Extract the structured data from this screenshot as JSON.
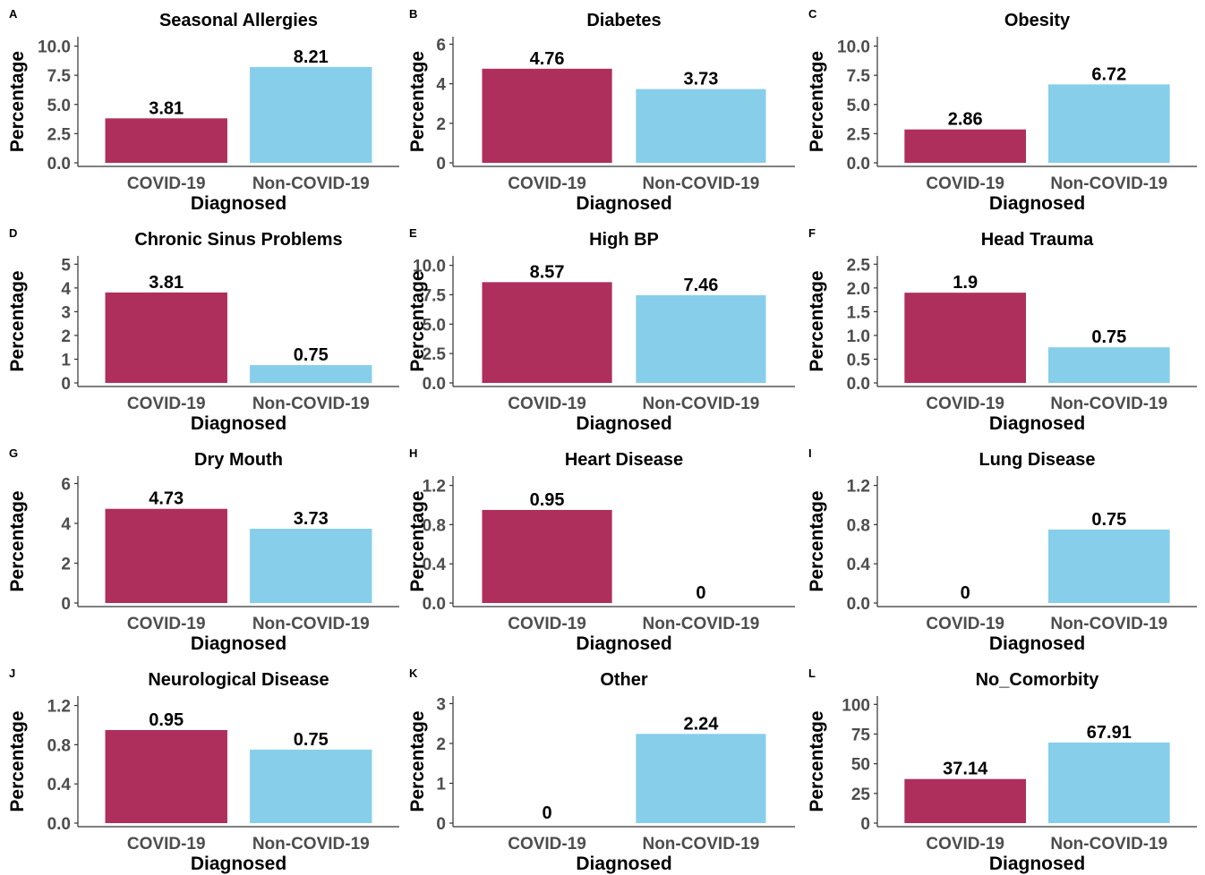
{
  "colors": {
    "covid": "#AE2F5C",
    "noncovid": "#87CEEB"
  },
  "chart_data": [
    {
      "letter": "A",
      "type": "bar",
      "title": "Seasonal Allergies",
      "xlabel": "Diagnosed",
      "ylabel": "Percentage",
      "categories": [
        "COVID-19",
        "Non-COVID-19"
      ],
      "values": [
        3.81,
        8.21
      ],
      "value_labels": [
        "3.81",
        "8.21"
      ],
      "ylim": [
        0,
        10.5
      ],
      "yticks": [
        "0.0",
        "2.5",
        "5.0",
        "7.5",
        "10.0"
      ],
      "ytick_values": [
        0,
        2.5,
        5,
        7.5,
        10
      ]
    },
    {
      "letter": "B",
      "type": "bar",
      "title": "Diabetes",
      "xlabel": "Diagnosed",
      "ylabel": "Percentage",
      "categories": [
        "COVID-19",
        "Non-COVID-19"
      ],
      "values": [
        4.76,
        3.73
      ],
      "value_labels": [
        "4.76",
        "3.73"
      ],
      "ylim": [
        0,
        6.2
      ],
      "yticks": [
        "0",
        "2",
        "4",
        "6"
      ],
      "ytick_values": [
        0,
        2,
        4,
        6
      ]
    },
    {
      "letter": "C",
      "type": "bar",
      "title": "Obesity",
      "xlabel": "Diagnosed",
      "ylabel": "Percentage",
      "categories": [
        "COVID-19",
        "Non-COVID-19"
      ],
      "values": [
        2.86,
        6.72
      ],
      "value_labels": [
        "2.86",
        "6.72"
      ],
      "ylim": [
        0,
        10.5
      ],
      "yticks": [
        "0.0",
        "2.5",
        "5.0",
        "7.5",
        "10.0"
      ],
      "ytick_values": [
        0,
        2.5,
        5,
        7.5,
        10
      ]
    },
    {
      "letter": "D",
      "type": "bar",
      "title": "Chronic Sinus Problems",
      "xlabel": "Diagnosed",
      "ylabel": "Percentage",
      "categories": [
        "COVID-19",
        "Non-COVID-19"
      ],
      "values": [
        3.81,
        0.75
      ],
      "value_labels": [
        "3.81",
        "0.75"
      ],
      "ylim": [
        0,
        5.2
      ],
      "yticks": [
        "0",
        "1",
        "2",
        "3",
        "4",
        "5"
      ],
      "ytick_values": [
        0,
        1,
        2,
        3,
        4,
        5
      ]
    },
    {
      "letter": "E",
      "type": "bar",
      "title": "High BP",
      "xlabel": "Diagnosed",
      "ylabel": "Percentage",
      "categories": [
        "COVID-19",
        "Non-COVID-19"
      ],
      "values": [
        8.57,
        7.46
      ],
      "value_labels": [
        "8.57",
        "7.46"
      ],
      "ylim": [
        0,
        10.5
      ],
      "yticks": [
        "0.0",
        "2.5",
        "5.0",
        "7.5",
        "10.0"
      ],
      "ytick_values": [
        0,
        2.5,
        5,
        7.5,
        10
      ]
    },
    {
      "letter": "F",
      "type": "bar",
      "title": "Head Trauma",
      "xlabel": "Diagnosed",
      "ylabel": "Percentage",
      "categories": [
        "COVID-19",
        "Non-COVID-19"
      ],
      "values": [
        1.9,
        0.75
      ],
      "value_labels": [
        "1.9",
        "0.75"
      ],
      "ylim": [
        0,
        2.6
      ],
      "yticks": [
        "0.0",
        "0.5",
        "1.0",
        "1.5",
        "2.0",
        "2.5"
      ],
      "ytick_values": [
        0,
        0.5,
        1,
        1.5,
        2,
        2.5
      ]
    },
    {
      "letter": "G",
      "type": "bar",
      "title": "Dry Mouth",
      "xlabel": "Diagnosed",
      "ylabel": "Percentage",
      "categories": [
        "COVID-19",
        "Non-COVID-19"
      ],
      "values": [
        4.73,
        3.73
      ],
      "value_labels": [
        "4.73",
        "3.73"
      ],
      "ylim": [
        0,
        6.2
      ],
      "yticks": [
        "0",
        "2",
        "4",
        "6"
      ],
      "ytick_values": [
        0,
        2,
        4,
        6
      ]
    },
    {
      "letter": "H",
      "type": "bar",
      "title": "Heart Disease",
      "xlabel": "Diagnosed",
      "ylabel": "Percentage",
      "categories": [
        "COVID-19",
        "Non-COVID-19"
      ],
      "values": [
        0.95,
        0
      ],
      "value_labels": [
        "0.95",
        "0"
      ],
      "ylim": [
        0,
        1.26
      ],
      "yticks": [
        "0.0",
        "0.4",
        "0.8",
        "1.2"
      ],
      "ytick_values": [
        0,
        0.4,
        0.8,
        1.2
      ]
    },
    {
      "letter": "I",
      "type": "bar",
      "title": "Lung Disease",
      "xlabel": "Diagnosed",
      "ylabel": "Percentage",
      "categories": [
        "COVID-19",
        "Non-COVID-19"
      ],
      "values": [
        0,
        0.75
      ],
      "value_labels": [
        "0",
        "0.75"
      ],
      "ylim": [
        0,
        1.26
      ],
      "yticks": [
        "0.0",
        "0.4",
        "0.8",
        "1.2"
      ],
      "ytick_values": [
        0,
        0.4,
        0.8,
        1.2
      ]
    },
    {
      "letter": "J",
      "type": "bar",
      "title": "Neurological Disease",
      "xlabel": "Diagnosed",
      "ylabel": "Percentage",
      "categories": [
        "COVID-19",
        "Non-COVID-19"
      ],
      "values": [
        0.95,
        0.75
      ],
      "value_labels": [
        "0.95",
        "0.75"
      ],
      "ylim": [
        0,
        1.26
      ],
      "yticks": [
        "0.0",
        "0.4",
        "0.8",
        "1.2"
      ],
      "ytick_values": [
        0,
        0.4,
        0.8,
        1.2
      ]
    },
    {
      "letter": "K",
      "type": "bar",
      "title": "Other",
      "xlabel": "Diagnosed",
      "ylabel": "Percentage",
      "categories": [
        "COVID-19",
        "Non-COVID-19"
      ],
      "values": [
        0,
        2.24
      ],
      "value_labels": [
        "0",
        "2.24"
      ],
      "ylim": [
        0,
        3.1
      ],
      "yticks": [
        "0",
        "1",
        "2",
        "3"
      ],
      "ytick_values": [
        0,
        1,
        2,
        3
      ]
    },
    {
      "letter": "L",
      "type": "bar",
      "title": "No_Comorbity",
      "xlabel": "Diagnosed",
      "ylabel": "Percentage",
      "categories": [
        "COVID-19",
        "Non-COVID-19"
      ],
      "values": [
        37.14,
        67.91
      ],
      "value_labels": [
        "37.14",
        "67.91"
      ],
      "ylim": [
        0,
        104
      ],
      "yticks": [
        "0",
        "25",
        "50",
        "75",
        "100"
      ],
      "ytick_values": [
        0,
        25,
        50,
        75,
        100
      ]
    }
  ]
}
